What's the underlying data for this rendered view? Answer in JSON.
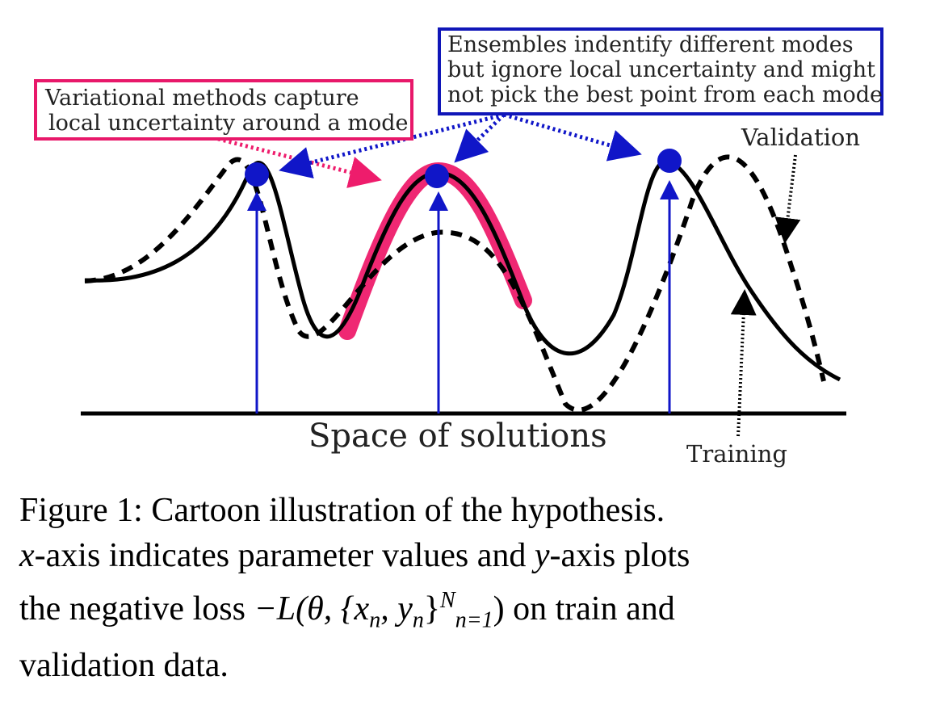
{
  "figure": {
    "annotations": {
      "variational": [
        "Variational methods capture",
        "local uncertainty around a mode"
      ],
      "ensembles": [
        "Ensembles indentify different modes",
        "but ignore local uncertainty and might",
        "not pick the best point from each mode"
      ]
    },
    "labels": {
      "validation": "Validation",
      "training": "Training",
      "space": "Space of solutions"
    },
    "colors": {
      "variational_box": "#e8186a",
      "ensembles_box": "#1016b8",
      "arrow_blue": "#1016c8",
      "highlight": "#ee1c6c",
      "curve": "#000000"
    }
  },
  "caption": {
    "fig_label": "Figure 1:",
    "line1_rest": "Cartoon illustration of the hypothesis.",
    "x_var": "x",
    "line2_a": "-axis indicates parameter values and",
    "y_var": "y",
    "line2_b": "-axis plots",
    "line3_a": "the negative loss",
    "math": "−L(θ, {x",
    "sub_n": "n",
    "comma": ", y",
    "sub_n2": "n",
    "close": "}",
    "sup_N": "N",
    "sub_eq": "n=1",
    "paren": ")",
    "line3_b": "on train and",
    "line4": "validation data."
  }
}
